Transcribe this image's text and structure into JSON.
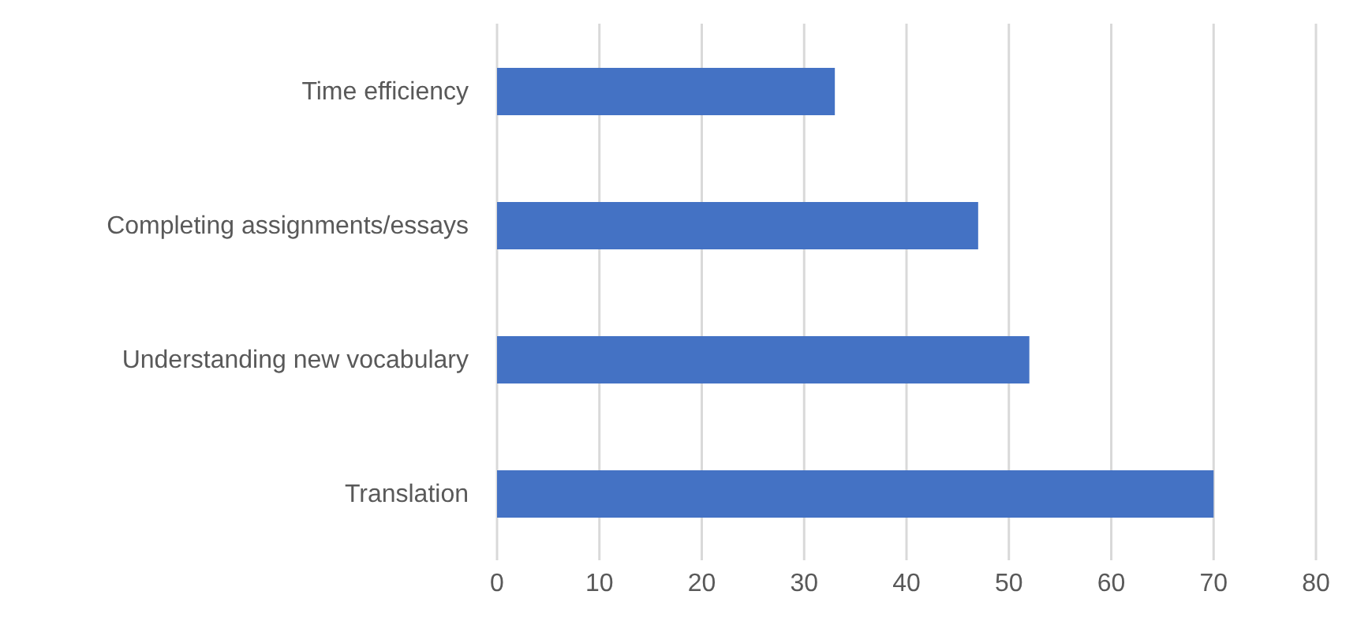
{
  "chart_data": {
    "type": "bar",
    "orientation": "horizontal",
    "categories": [
      "Time efficiency",
      "Completing assignments/essays",
      "Understanding new vocabulary",
      "Translation"
    ],
    "values": [
      33,
      47,
      52,
      70
    ],
    "color": "#4472c4",
    "xlim": [
      0,
      80
    ],
    "xticks": [
      0,
      10,
      20,
      30,
      40,
      50,
      60,
      70,
      80
    ],
    "grid": "x"
  }
}
